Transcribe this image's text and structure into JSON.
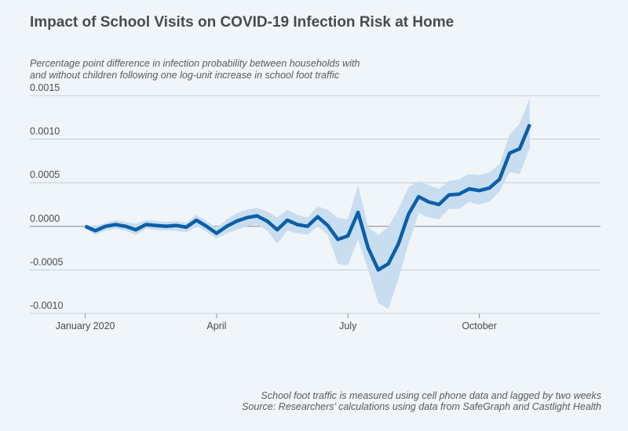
{
  "title": "Impact of School Visits on COVID-19 Infection Risk at Home",
  "subtitle_lines": [
    "Percentage point difference in infection probability between households with",
    "and without children following one log-unit increase in school foot traffic"
  ],
  "source_lines": [
    "School foot traffic is measured using cell phone data and lagged by two weeks",
    "Source: Researchers’ calculations using data from SafeGraph and Castlight Health"
  ],
  "colors": {
    "line": "#0a5fa8",
    "band": "#c8ddef",
    "grid": "#b8c2cc",
    "zero": "#8a939c",
    "background": "#f0f5fa"
  },
  "chart_data": {
    "type": "line",
    "title": "Impact of School Visits on COVID-19 Infection Risk at Home",
    "ylim": [
      -0.001,
      0.0015
    ],
    "yticks": [
      "0.0015",
      "0.0010",
      "0.0005",
      "0.0000",
      "-0.0005",
      "-0.0010"
    ],
    "ytick_values": [
      0.0015,
      0.001,
      0.0005,
      0,
      -0.0005,
      -0.001
    ],
    "xticks": [
      "January 2020",
      "April",
      "July",
      "October"
    ],
    "xtick_weeks": [
      0,
      13,
      26,
      39
    ],
    "xlim_weeks": [
      -3,
      51
    ],
    "grid": true,
    "x_unit": "weekly",
    "series": [
      {
        "values": [
          0.0,
          -5e-05,
          0.0,
          2e-05,
          0.0,
          -4e-05,
          2e-05,
          1e-05,
          0.0,
          1e-05,
          -1e-05,
          7e-05,
          0.0,
          -8e-05,
          0.0,
          6e-05,
          0.0001,
          0.00012,
          6e-05,
          -4e-05,
          7e-05,
          2e-05,
          0.0,
          0.00011,
          1e-05,
          -0.00015,
          -0.00011,
          0.00016,
          -0.00025,
          -0.0005,
          -0.00043,
          -0.0002,
          0.00014,
          0.00034,
          0.00028,
          0.00025,
          0.00036,
          0.00037,
          0.00043,
          0.00041,
          0.00044,
          0.00054,
          0.00084,
          0.00089,
          0.00117
        ],
        "lower": [
          -2e-05,
          -0.0001,
          -5e-05,
          -3e-05,
          -5e-05,
          -0.0001,
          -3e-05,
          -4e-05,
          -5e-05,
          -5e-05,
          -7e-05,
          0.0,
          -6e-05,
          -0.00014,
          -8e-05,
          -4e-05,
          0.0,
          2e-05,
          -5e-05,
          -0.0002,
          -5e-05,
          -8e-05,
          -0.0001,
          0.0,
          -0.0001,
          -0.00043,
          -0.00045,
          -0.00015,
          -0.0005,
          -0.00088,
          -0.00095,
          -0.0006,
          -0.0002,
          0.00015,
          0.0001,
          8e-05,
          0.0002,
          0.0002,
          0.00028,
          0.00025,
          0.00028,
          0.0004,
          0.00062,
          0.0006,
          0.0009
        ],
        "upper": [
          2e-05,
          0.0,
          4e-05,
          7e-05,
          5e-05,
          3e-05,
          7e-05,
          6e-05,
          5e-05,
          6e-05,
          4e-05,
          0.00013,
          6e-05,
          -2e-05,
          8e-05,
          0.00015,
          0.00019,
          0.00021,
          0.00017,
          0.0001,
          0.00019,
          0.00013,
          0.0001,
          0.00023,
          0.00019,
          0.0001,
          8e-05,
          0.00047,
          -1e-05,
          -0.0001,
          -1e-05,
          0.0002,
          0.00045,
          0.00052,
          0.00047,
          0.00043,
          0.00052,
          0.00054,
          0.0006,
          0.00059,
          0.00062,
          0.00071,
          0.00105,
          0.00118,
          0.00147
        ]
      }
    ]
  }
}
